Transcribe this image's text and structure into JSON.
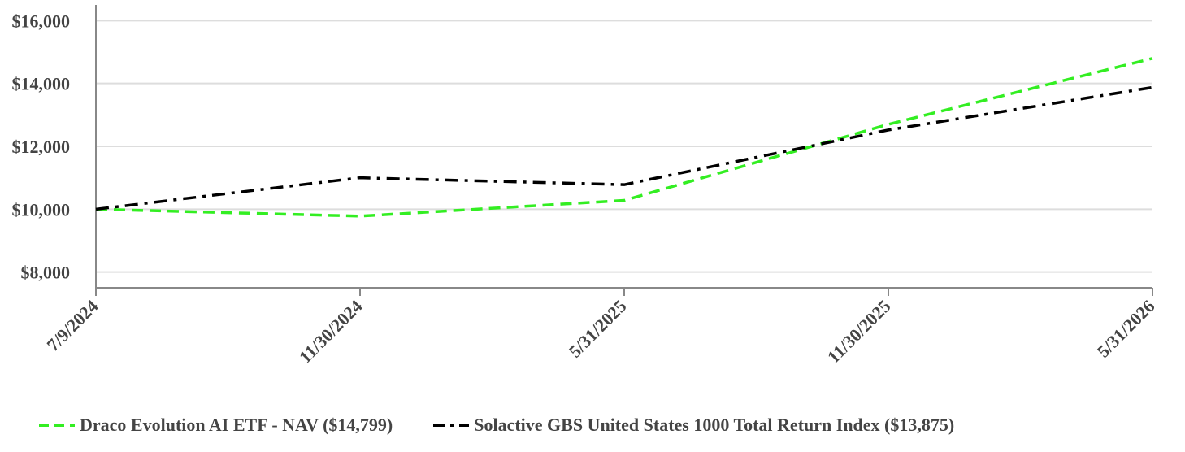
{
  "chart_data": {
    "type": "line",
    "x": [
      "7/9/2024",
      "11/30/2024",
      "5/31/2025",
      "11/30/2025",
      "5/31/2026"
    ],
    "series": [
      {
        "name": "Draco Evolution AI ETF - NAV ($14,799)",
        "values": [
          10000,
          9780,
          10280,
          12700,
          14799
        ],
        "color": "#33ee22",
        "dash": "dashed"
      },
      {
        "name": "Solactive GBS United States 1000 Total Return Index ($13,875)",
        "values": [
          10000,
          11000,
          10780,
          12520,
          13875
        ],
        "color": "#000000",
        "dash": "dash-dot"
      }
    ],
    "yticks": [
      "$8,000",
      "$10,000",
      "$12,000",
      "$14,000",
      "$16,000"
    ],
    "ytick_values": [
      8000,
      10000,
      12000,
      14000,
      16000
    ],
    "ylim": [
      7500,
      16500
    ],
    "grid": "horizontal",
    "legend_position": "bottom",
    "title": "",
    "xlabel": "",
    "ylabel": ""
  }
}
